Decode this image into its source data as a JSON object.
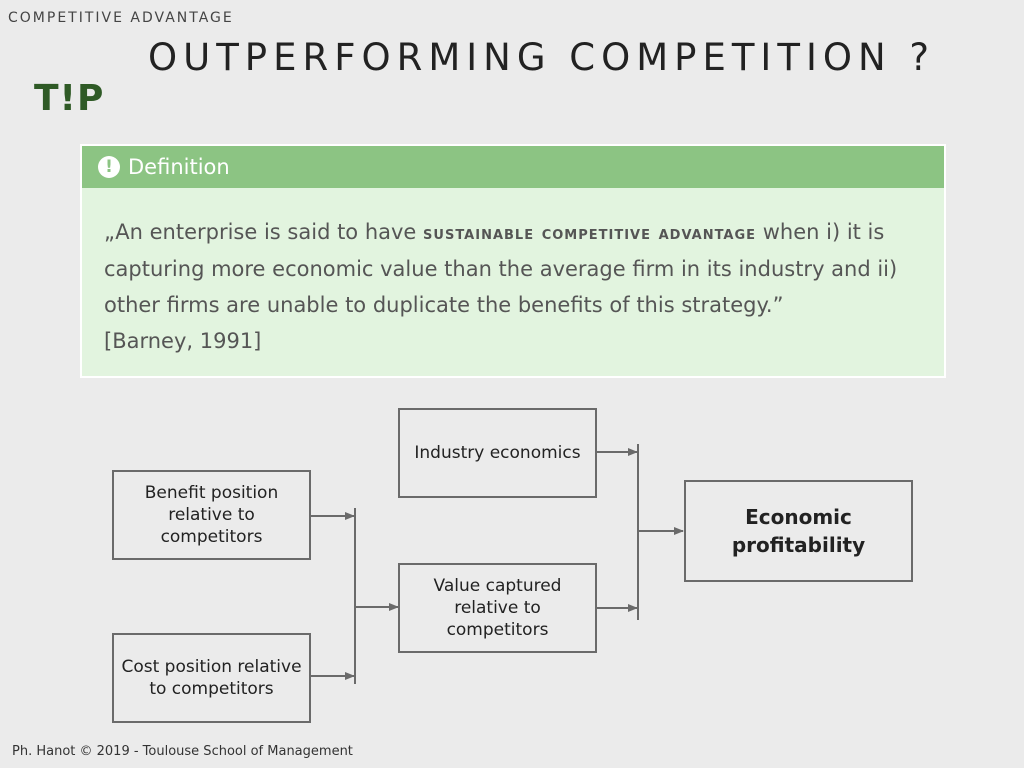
{
  "header": {
    "kicker": "COMPETITIVE ADVANTAGE",
    "logo": "T!P",
    "title": "OUTPERFORMING COMPETITION ?"
  },
  "definition": {
    "icon": "exclamation-icon",
    "heading": "Definition",
    "text_before": "„An enterprise is said to have ",
    "emphasis": "sustainable competitive advantage",
    "text_after": " when i) it is capturing more economic value than the average firm in its industry and ii) other firms are unable to duplicate the benefits of this strategy.”",
    "citation": "[Barney, 1991]"
  },
  "diagram": {
    "benefit": "Benefit position relative to competitors",
    "cost": "Cost position relative to competitors",
    "industry": "Industry economics",
    "value": "Value captured relative to competitors",
    "profit": "Economic profitability"
  },
  "footer": "Ph. Hanot © 2019  -  Toulouse School of Management",
  "colors": {
    "background": "#ebebeb",
    "logo": "#2f5a26",
    "definition_header": "#8cc483",
    "definition_body": "#e2f4df"
  }
}
